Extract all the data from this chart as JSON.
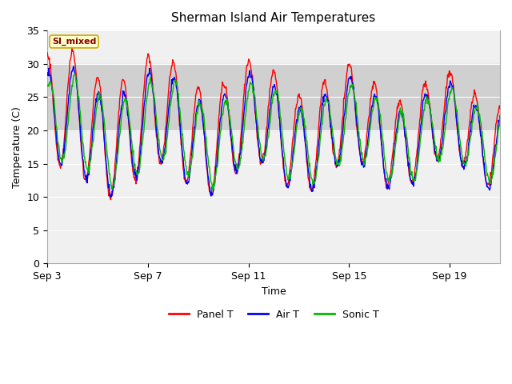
{
  "title": "Sherman Island Air Temperatures",
  "xlabel": "Time",
  "ylabel": "Temperature (C)",
  "ylim": [
    0,
    35
  ],
  "yticks": [
    0,
    5,
    10,
    15,
    20,
    25,
    30,
    35
  ],
  "x_tick_labels": [
    "Sep 3",
    "Sep 7",
    "Sep 11",
    "Sep 15",
    "Sep 19"
  ],
  "x_tick_positions": [
    0,
    4,
    8,
    12,
    16
  ],
  "legend_labels": [
    "Panel T",
    "Air T",
    "Sonic T"
  ],
  "legend_colors": [
    "#ff0000",
    "#0000ff",
    "#00bb00"
  ],
  "annotation_text": "SI_mixed",
  "annotation_bg": "#ffffcc",
  "annotation_border": "#ccaa00",
  "annotation_text_color": "#880000",
  "bg_band_lower": 20,
  "bg_band_upper": 30,
  "bg_band_color": "#d0d0d0",
  "plot_bg": "#f0f0f0",
  "total_days": 18,
  "n_points": 864,
  "grid_color": "#ffffff",
  "spine_color": "#aaaaaa"
}
